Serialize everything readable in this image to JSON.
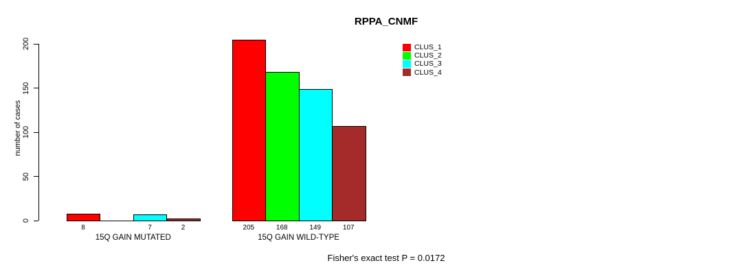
{
  "chart_data": {
    "type": "bar",
    "title": "RPPA_CNMF",
    "ylabel": "number of cases",
    "xlabel": "",
    "ylim": [
      0,
      200
    ],
    "yticks": [
      0,
      50,
      100,
      150,
      200
    ],
    "grid": false,
    "background": "#FFFFFF",
    "bar_border_color": "#000000",
    "categories": [
      "15Q GAIN MUTATED",
      "15Q GAIN WILD-TYPE"
    ],
    "series": [
      {
        "name": "CLUS_1",
        "color": "#FF0000",
        "values": [
          8,
          205
        ]
      },
      {
        "name": "CLUS_2",
        "color": "#00FF00",
        "values": [
          0,
          168
        ]
      },
      {
        "name": "CLUS_3",
        "color": "#00FFFF",
        "values": [
          7,
          149
        ]
      },
      {
        "name": "CLUS_4",
        "color": "#A52A2A",
        "values": [
          2,
          107
        ]
      }
    ],
    "bar_value_labels": [
      [
        "8",
        "",
        "7",
        "2"
      ],
      [
        "205",
        "168",
        "149",
        "107"
      ]
    ],
    "legend": {
      "position": "top-right",
      "entries": [
        {
          "label": "CLUS_1",
          "color": "#FF0000"
        },
        {
          "label": "CLUS_2",
          "color": "#00FF00"
        },
        {
          "label": "CLUS_3",
          "color": "#00FFFF"
        },
        {
          "label": "CLUS_4",
          "color": "#A52A2A"
        }
      ]
    },
    "annotation": "Fisher's exact test P = 0.0172"
  }
}
